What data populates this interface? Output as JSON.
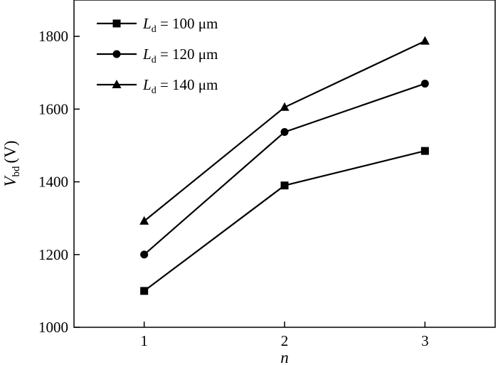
{
  "chart_data": {
    "type": "line",
    "x": [
      1,
      2,
      3
    ],
    "xlim": [
      0.5,
      3.5
    ],
    "ylim": [
      1000,
      1900
    ],
    "xticks": [
      1,
      2,
      3
    ],
    "yticks": [
      1000,
      1200,
      1400,
      1600,
      1800
    ],
    "xlabel": "n",
    "ylabel": {
      "symbol": "V",
      "subscript": "bd",
      "unit": "(V)"
    },
    "legend_position": "top-left",
    "series": [
      {
        "name": {
          "symbol": "L",
          "subscript": "d",
          "text": " = 100 μm"
        },
        "marker": "square",
        "values": [
          1100,
          1390,
          1485
        ]
      },
      {
        "name": {
          "symbol": "L",
          "subscript": "d",
          "text": " = 120 μm"
        },
        "marker": "circle",
        "values": [
          1200,
          1537,
          1670
        ]
      },
      {
        "name": {
          "symbol": "L",
          "subscript": "d",
          "text": " = 140 μm"
        },
        "marker": "triangle",
        "values": [
          1292,
          1605,
          1787
        ]
      }
    ]
  }
}
